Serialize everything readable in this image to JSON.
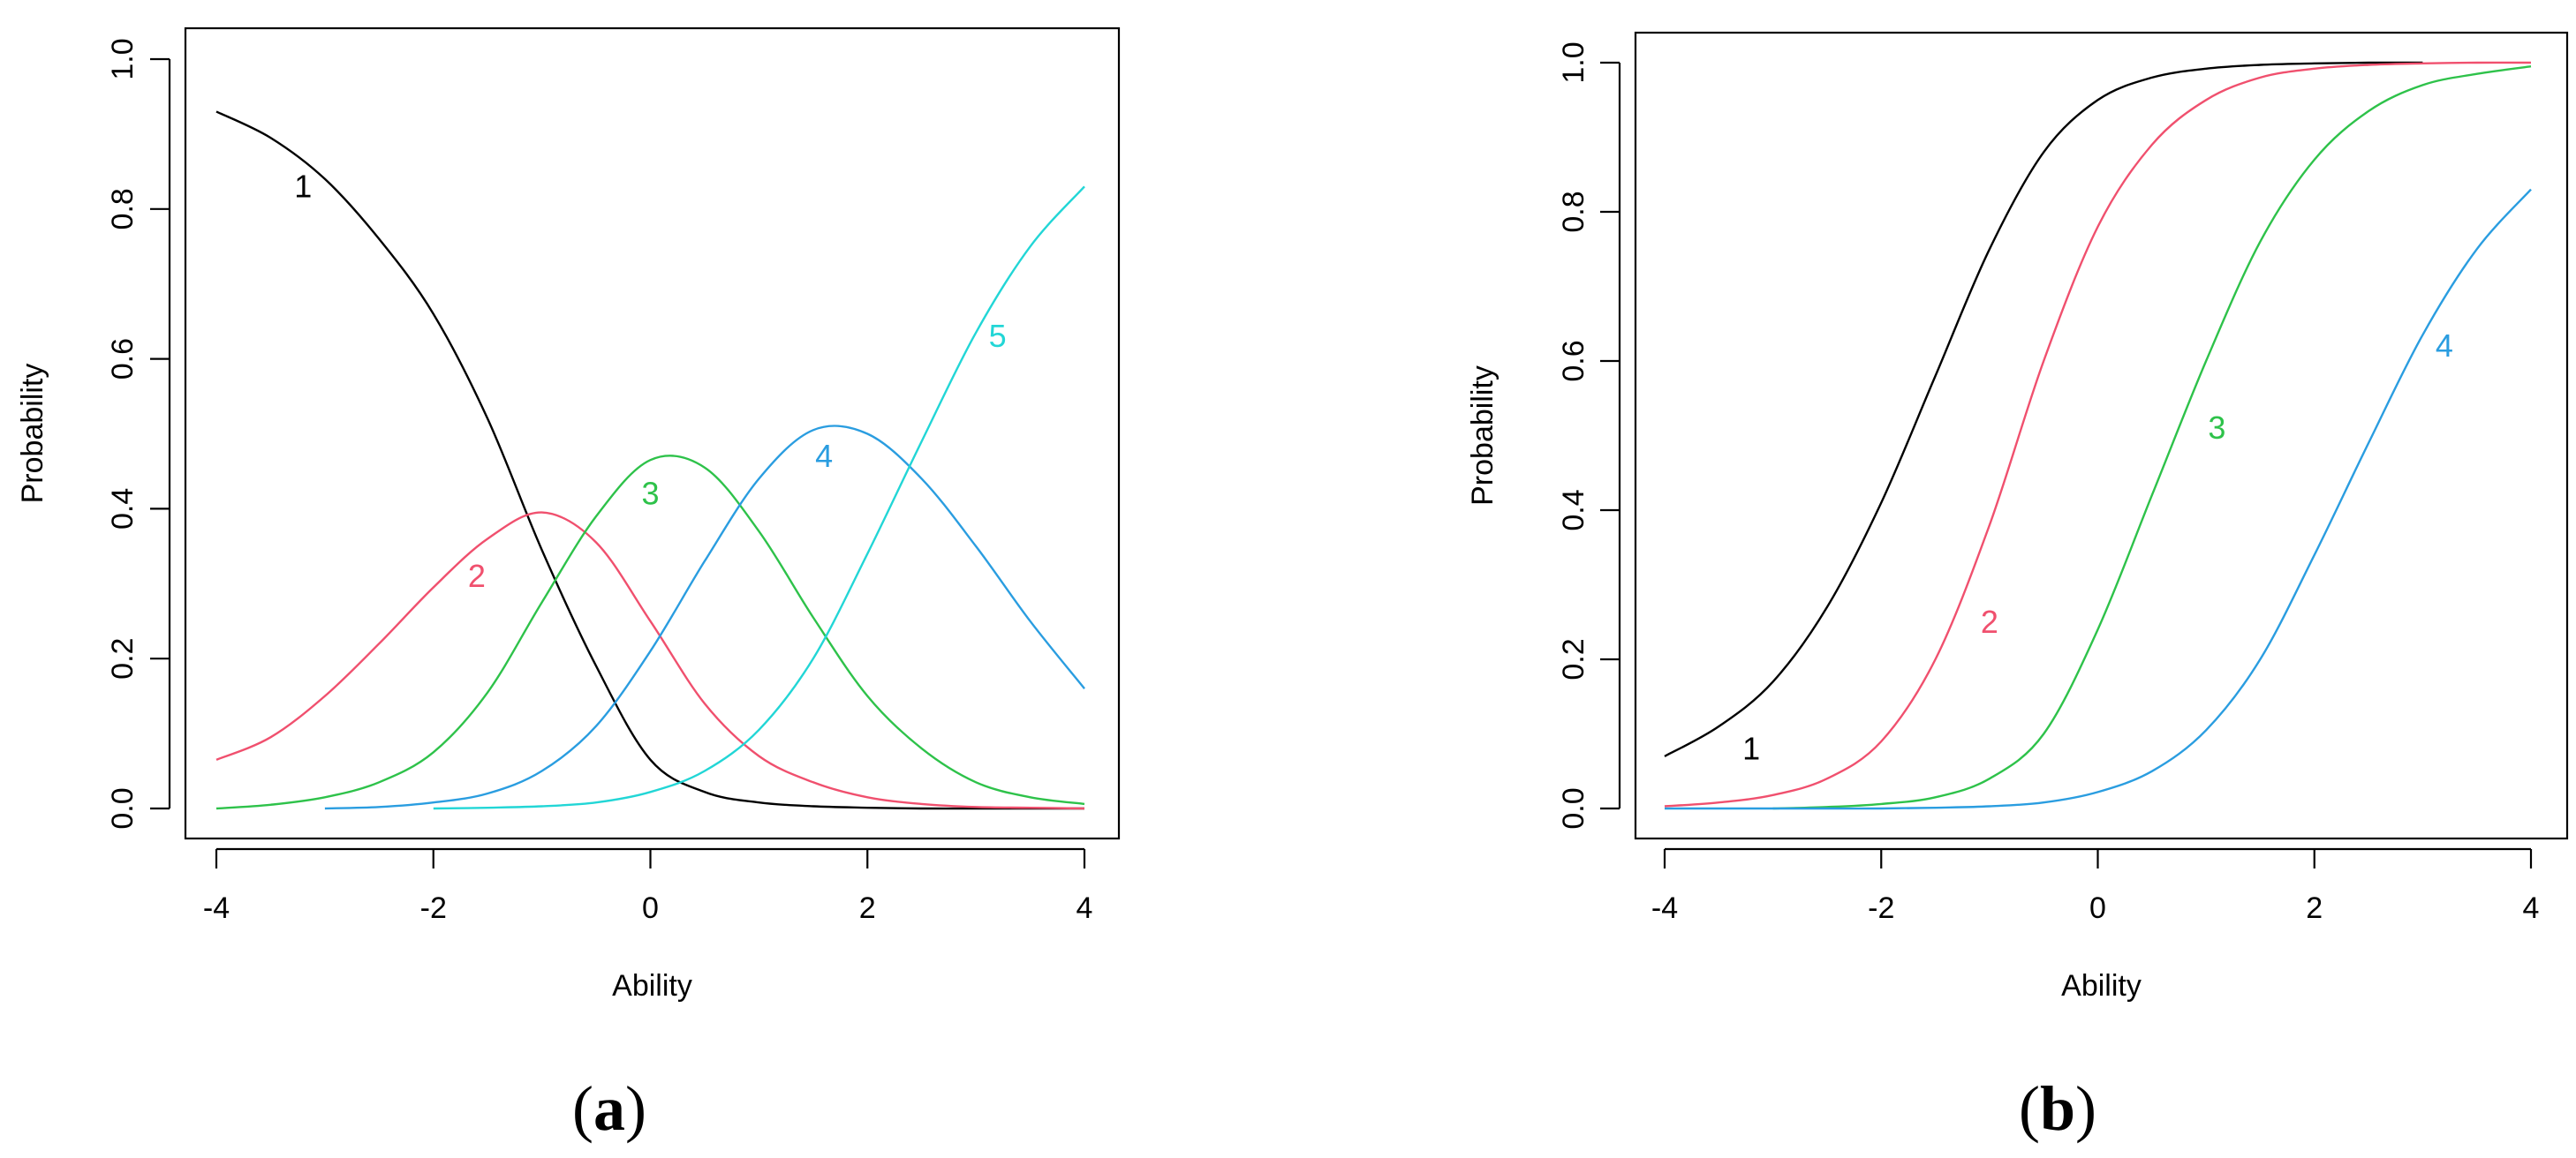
{
  "chart_data": [
    {
      "panel": "a",
      "type": "line",
      "caption_letter": "a",
      "xlabel": "Ability",
      "ylabel": "Probability",
      "xlim": [
        -4,
        4
      ],
      "ylim": [
        0,
        1
      ],
      "xticks": [
        "-4",
        "-2",
        "0",
        "2",
        "4"
      ],
      "yticks": [
        "0.0",
        "0.2",
        "0.4",
        "0.6",
        "0.8",
        "1.0"
      ],
      "grid": false,
      "series": [
        {
          "name": "1",
          "color": "#000000",
          "label_at": [
            -3.2,
            0.83
          ],
          "x": [
            -4,
            -3.5,
            -3,
            -2.5,
            -2,
            -1.5,
            -1,
            -0.5,
            0,
            0.5,
            1,
            1.5,
            2,
            2.5,
            3,
            3.5,
            4
          ],
          "y": [
            0.93,
            0.895,
            0.84,
            0.76,
            0.66,
            0.52,
            0.345,
            0.19,
            0.065,
            0.022,
            0.008,
            0.003,
            0.001,
            0.0,
            0.0,
            0.0,
            0.0
          ]
        },
        {
          "name": "2",
          "color": "#f0506e",
          "label_at": [
            -1.6,
            0.31
          ],
          "x": [
            -4,
            -3.5,
            -3,
            -2.5,
            -2,
            -1.5,
            -1,
            -0.5,
            0,
            0.5,
            1,
            1.5,
            2,
            2.5,
            3,
            3.5,
            4
          ],
          "y": [
            0.065,
            0.095,
            0.15,
            0.22,
            0.295,
            0.36,
            0.395,
            0.355,
            0.25,
            0.14,
            0.07,
            0.035,
            0.015,
            0.006,
            0.002,
            0.001,
            0.0
          ]
        },
        {
          "name": "3",
          "color": "#2ec24a",
          "label_at": [
            0.0,
            0.42
          ],
          "x": [
            -4,
            -3.5,
            -3,
            -2.5,
            -2,
            -1.5,
            -1,
            -0.5,
            0,
            0.5,
            1,
            1.5,
            2,
            2.5,
            3,
            3.5,
            4
          ],
          "y": [
            0.0,
            0.005,
            0.015,
            0.035,
            0.075,
            0.155,
            0.275,
            0.39,
            0.465,
            0.455,
            0.37,
            0.255,
            0.15,
            0.08,
            0.035,
            0.015,
            0.006
          ]
        },
        {
          "name": "4",
          "color": "#2a9de0",
          "label_at": [
            1.6,
            0.47
          ],
          "x": [
            -3,
            -2.5,
            -2,
            -1.5,
            -1,
            -0.5,
            0,
            0.5,
            1,
            1.5,
            2,
            2.5,
            3,
            3.5,
            4
          ],
          "y": [
            0.0,
            0.002,
            0.008,
            0.02,
            0.05,
            0.11,
            0.21,
            0.33,
            0.44,
            0.505,
            0.5,
            0.44,
            0.35,
            0.25,
            0.16
          ]
        },
        {
          "name": "5",
          "color": "#22d6d6",
          "label_at": [
            3.2,
            0.63
          ],
          "x": [
            -2,
            -1.5,
            -1,
            -0.5,
            0,
            0.5,
            1,
            1.5,
            2,
            2.5,
            3,
            3.5,
            4
          ],
          "y": [
            0.0,
            0.001,
            0.003,
            0.008,
            0.022,
            0.05,
            0.105,
            0.2,
            0.34,
            0.49,
            0.635,
            0.75,
            0.83
          ]
        }
      ]
    },
    {
      "panel": "b",
      "type": "line",
      "caption_letter": "b",
      "xlabel": "Ability",
      "ylabel": "Probability",
      "xlim": [
        -4,
        4
      ],
      "ylim": [
        0,
        1
      ],
      "xticks": [
        "-4",
        "-2",
        "0",
        "2",
        "4"
      ],
      "yticks": [
        "0.0",
        "0.2",
        "0.4",
        "0.6",
        "0.8",
        "1.0"
      ],
      "grid": false,
      "series": [
        {
          "name": "1",
          "color": "#000000",
          "label_at": [
            -3.2,
            0.08
          ],
          "x": [
            -4,
            -3.5,
            -3,
            -2.5,
            -2,
            -1.5,
            -1,
            -0.5,
            0,
            0.5,
            1,
            1.5,
            2,
            2.5,
            3
          ],
          "y": [
            0.07,
            0.11,
            0.17,
            0.27,
            0.41,
            0.58,
            0.75,
            0.88,
            0.95,
            0.98,
            0.992,
            0.997,
            0.999,
            1.0,
            1.0
          ]
        },
        {
          "name": "2",
          "color": "#f0506e",
          "label_at": [
            -1.0,
            0.25
          ],
          "x": [
            -4,
            -3.5,
            -3,
            -2.5,
            -2,
            -1.5,
            -1,
            -0.5,
            0,
            0.5,
            1,
            1.5,
            2,
            2.5,
            3,
            3.5,
            4
          ],
          "y": [
            0.003,
            0.008,
            0.018,
            0.04,
            0.09,
            0.2,
            0.38,
            0.6,
            0.78,
            0.89,
            0.95,
            0.98,
            0.992,
            0.997,
            0.999,
            1.0,
            1.0
          ]
        },
        {
          "name": "3",
          "color": "#2ec24a",
          "label_at": [
            1.1,
            0.51
          ],
          "x": [
            -3,
            -2.5,
            -2,
            -1.5,
            -1,
            -0.5,
            0,
            0.5,
            1,
            1.5,
            2,
            2.5,
            3,
            3.5,
            4
          ],
          "y": [
            0.0,
            0.002,
            0.006,
            0.015,
            0.04,
            0.1,
            0.24,
            0.42,
            0.6,
            0.76,
            0.87,
            0.935,
            0.97,
            0.985,
            0.995
          ]
        },
        {
          "name": "4",
          "color": "#2a9de0",
          "label_at": [
            3.2,
            0.62
          ],
          "x": [
            -4,
            -3.5,
            -3,
            -2.5,
            -2,
            -1.5,
            -1,
            -0.5,
            0,
            0.5,
            1,
            1.5,
            2,
            2.5,
            3,
            3.5,
            4
          ],
          "y": [
            0.0,
            0.0,
            0.0,
            0.0,
            0.0,
            0.001,
            0.003,
            0.008,
            0.022,
            0.05,
            0.105,
            0.2,
            0.34,
            0.49,
            0.635,
            0.75,
            0.83
          ]
        }
      ]
    }
  ]
}
